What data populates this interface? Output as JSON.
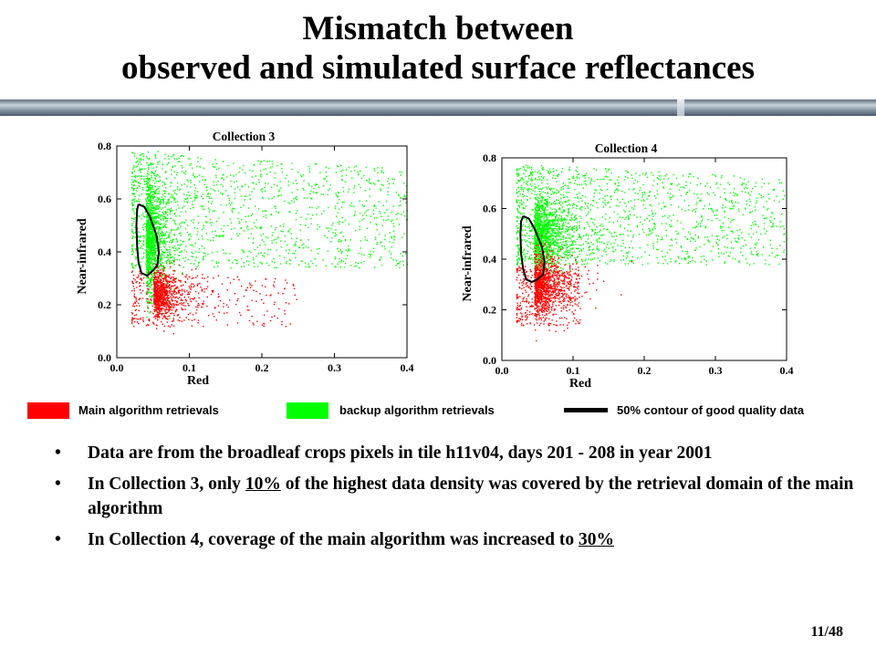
{
  "slide": {
    "title_line1": "Mismatch between",
    "title_line2": "observed and simulated surface reflectances",
    "page_number": "11/48"
  },
  "legend": {
    "main_label": "Main algorithm retrievals",
    "main_color": "#ff0000",
    "backup_label": "backup algorithm retrievals",
    "backup_color": "#00ff00",
    "contour_label": "50% contour of good quality data",
    "contour_color": "#000000"
  },
  "bullets": [
    {
      "text": "Data are from the broadleaf crops pixels in tile h11v04, days 201 - 208 in year 2001"
    },
    {
      "pre": "In Collection 3, only ",
      "highlight": "10%",
      "post": " of the highest data density was covered by the retrieval domain of the main algorithm"
    },
    {
      "pre": "In Collection 4, coverage of the main algorithm was increased to ",
      "highlight": "30%",
      "post": ""
    }
  ],
  "chart_data": [
    {
      "type": "scatter",
      "title": "Collection 3",
      "xlabel": "Red",
      "ylabel": "Near-infrared",
      "xlim": [
        0.0,
        0.4
      ],
      "ylim": [
        0.0,
        0.8
      ],
      "xticks": [
        "0.0",
        "0.1",
        "0.2",
        "0.3",
        "0.4"
      ],
      "yticks": [
        "0.0",
        "0.2",
        "0.4",
        "0.6",
        "0.8"
      ],
      "grid": false,
      "series": [
        {
          "name": "backup algorithm retrievals",
          "color": "#00ff00",
          "core": [
            0.04,
            0.46,
            0.012,
            0.11
          ],
          "spread": [
            0.02,
            0.34,
            0.4,
            0.78
          ],
          "n_core": 1300,
          "n_spread": 1400
        },
        {
          "name": "Main algorithm retrievals",
          "color": "#ff0000",
          "core": [
            0.05,
            0.24,
            0.018,
            0.045
          ],
          "spread": [
            0.02,
            0.12,
            0.25,
            0.33
          ],
          "n_core": 800,
          "n_spread": 350
        }
      ],
      "contour": [
        [
          0.03,
          0.58
        ],
        [
          0.038,
          0.57
        ],
        [
          0.046,
          0.53
        ],
        [
          0.055,
          0.46
        ],
        [
          0.058,
          0.4
        ],
        [
          0.056,
          0.35
        ],
        [
          0.05,
          0.33
        ],
        [
          0.042,
          0.31
        ],
        [
          0.034,
          0.32
        ],
        [
          0.03,
          0.36
        ],
        [
          0.028,
          0.42
        ],
        [
          0.027,
          0.5
        ],
        [
          0.028,
          0.56
        ],
        [
          0.03,
          0.58
        ]
      ]
    },
    {
      "type": "scatter",
      "title": "Collection 4",
      "xlabel": "Red",
      "ylabel": "Near-infrared",
      "xlim": [
        0.0,
        0.4
      ],
      "ylim": [
        0.0,
        0.8
      ],
      "xticks": [
        "0.0",
        "0.1",
        "0.2",
        "0.3",
        "0.4"
      ],
      "yticks": [
        "0.0",
        "0.2",
        "0.4",
        "0.6",
        "0.8"
      ],
      "grid": false,
      "series": [
        {
          "name": "backup algorithm retrievals",
          "color": "#00ff00",
          "core": [
            0.045,
            0.49,
            0.02,
            0.08
          ],
          "spread": [
            0.02,
            0.38,
            0.4,
            0.78
          ],
          "n_core": 1300,
          "n_spread": 1400
        },
        {
          "name": "Main algorithm retrievals",
          "color": "#ff0000",
          "core": [
            0.045,
            0.3,
            0.02,
            0.06
          ],
          "spread": [
            0.02,
            0.14,
            0.11,
            0.38
          ],
          "n_core": 1100,
          "n_spread": 300
        }
      ],
      "contour": [
        [
          0.03,
          0.57
        ],
        [
          0.038,
          0.56
        ],
        [
          0.046,
          0.52
        ],
        [
          0.056,
          0.45
        ],
        [
          0.06,
          0.39
        ],
        [
          0.058,
          0.34
        ],
        [
          0.05,
          0.32
        ],
        [
          0.042,
          0.31
        ],
        [
          0.034,
          0.32
        ],
        [
          0.03,
          0.36
        ],
        [
          0.027,
          0.42
        ],
        [
          0.026,
          0.5
        ],
        [
          0.027,
          0.55
        ],
        [
          0.03,
          0.57
        ]
      ]
    }
  ]
}
